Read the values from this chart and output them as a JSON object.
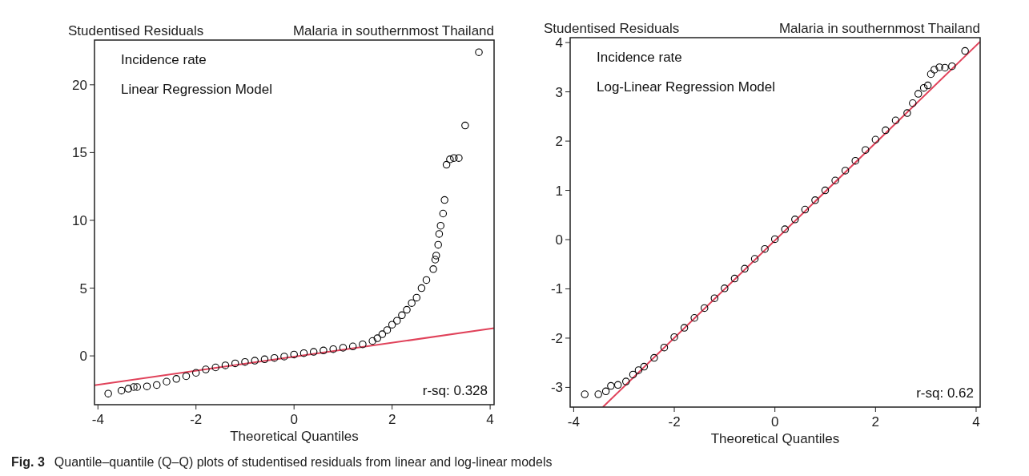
{
  "chart_data": [
    {
      "type": "scatter",
      "title": "Malaria in southernmost Thailand",
      "ylabel": "Studentised Residuals",
      "xlabel": "Theoretical Quantiles",
      "annotations": [
        "Incidence rate",
        "Linear Regression Model",
        "r-sq: 0.328",
        "Fig. 3",
        "Quantile–quantile (Q–Q) plots of studentised residuals from linear and log-linear models"
      ],
      "xlim": [
        -4.07,
        4.08
      ],
      "ylim": [
        -3.6,
        23.3
      ],
      "xticks": [
        -4,
        -2,
        0,
        2,
        4
      ],
      "yticks": [
        0,
        5,
        10,
        15,
        20
      ],
      "series": [
        {
          "marker": "circle",
          "color": "#000000",
          "x": [
            -3.79,
            -3.52,
            -3.38,
            -3.27,
            -3.2,
            -3.0,
            -2.8,
            -2.6,
            -2.4,
            -2.2,
            -2.0,
            -1.8,
            -1.6,
            -1.4,
            -1.2,
            -1.0,
            -0.8,
            -0.6,
            -0.4,
            -0.2,
            0,
            0.2,
            0.4,
            0.6,
            0.8,
            1.0,
            1.2,
            1.4,
            1.6,
            1.7,
            1.8,
            1.9,
            2.0,
            2.1,
            2.2,
            2.3,
            2.4,
            2.5,
            2.6,
            2.7,
            2.84,
            2.88,
            2.9,
            2.94,
            2.96,
            2.99,
            3.04,
            3.07,
            3.11,
            3.18,
            3.26,
            3.36,
            3.49,
            3.77
          ],
          "values": [
            -2.78,
            -2.56,
            -2.42,
            -2.3,
            -2.3,
            -2.25,
            -2.15,
            -1.9,
            -1.7,
            -1.5,
            -1.25,
            -1.0,
            -0.85,
            -0.7,
            -0.55,
            -0.45,
            -0.35,
            -0.25,
            -0.15,
            -0.05,
            0.1,
            0.2,
            0.3,
            0.4,
            0.5,
            0.6,
            0.7,
            0.85,
            1.1,
            1.3,
            1.6,
            1.9,
            2.3,
            2.6,
            3.0,
            3.4,
            3.9,
            4.3,
            5.0,
            5.6,
            6.4,
            7.1,
            7.4,
            8.2,
            9.0,
            9.6,
            10.5,
            11.5,
            14.1,
            14.5,
            14.6,
            14.6,
            17.0,
            22.4
          ]
        },
        {
          "type": "line",
          "color": "#e0425a",
          "x": [
            -4.07,
            4.08
          ],
          "values": [
            -2.16,
            2.04
          ]
        }
      ]
    },
    {
      "type": "scatter",
      "title": "Malaria in southernmost Thailand",
      "ylabel": "Studentised Residuals",
      "xlabel": "Theoretical Quantiles",
      "annotations": [
        "Incidence rate",
        "Log-Linear Regression Model",
        "r-sq: 0.62"
      ],
      "xlim": [
        -4.07,
        4.08
      ],
      "ylim": [
        -3.4,
        4.1
      ],
      "xticks": [
        -4,
        -2,
        0,
        2,
        4
      ],
      "yticks": [
        -3,
        -2,
        -1,
        0,
        1,
        2,
        3,
        4
      ],
      "series": [
        {
          "marker": "circle",
          "color": "#000000",
          "x": [
            -3.78,
            -3.51,
            -3.36,
            -3.26,
            -3.12,
            -2.96,
            -2.82,
            -2.71,
            -2.6,
            -2.4,
            -2.2,
            -2.0,
            -1.8,
            -1.6,
            -1.4,
            -1.2,
            -1.0,
            -0.8,
            -0.6,
            -0.4,
            -0.2,
            0,
            0.2,
            0.4,
            0.6,
            0.8,
            1.0,
            1.2,
            1.4,
            1.6,
            1.8,
            2.0,
            2.2,
            2.4,
            2.63,
            2.74,
            2.85,
            2.96,
            3.04,
            3.1,
            3.17,
            3.27,
            3.38,
            3.52,
            3.78
          ],
          "values": [
            -3.14,
            -3.14,
            -3.08,
            -2.97,
            -2.95,
            -2.88,
            -2.74,
            -2.65,
            -2.58,
            -2.4,
            -2.19,
            -1.98,
            -1.79,
            -1.59,
            -1.39,
            -1.19,
            -0.99,
            -0.79,
            -0.59,
            -0.39,
            -0.19,
            0.01,
            0.21,
            0.41,
            0.61,
            0.8,
            1.0,
            1.2,
            1.4,
            1.6,
            1.82,
            2.03,
            2.22,
            2.42,
            2.57,
            2.77,
            2.96,
            3.08,
            3.13,
            3.36,
            3.45,
            3.5,
            3.49,
            3.52,
            3.83
          ]
        },
        {
          "type": "line",
          "color": "#e0425a",
          "x": [
            -3.42,
            4.08
          ],
          "values": [
            -3.4,
            4.02
          ]
        }
      ]
    }
  ]
}
